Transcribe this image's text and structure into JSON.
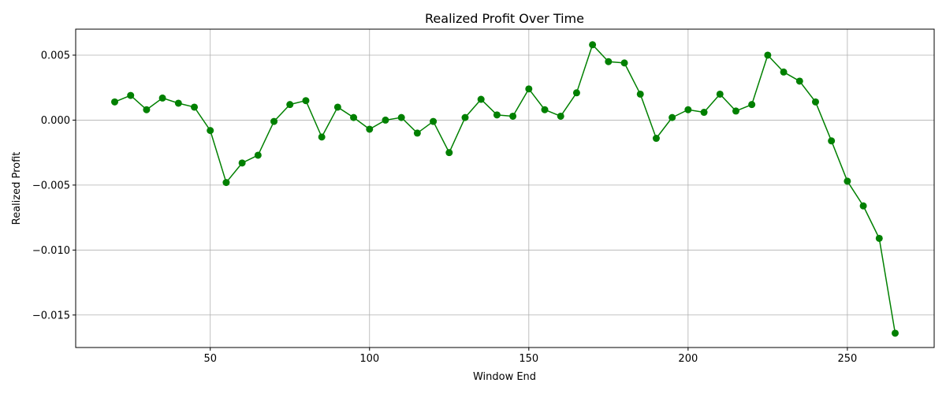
{
  "chart_data": {
    "type": "line",
    "title": "Realized Profit Over Time",
    "xlabel": "Window End",
    "ylabel": "Realized Profit",
    "xlim": [
      7.75,
      277.25
    ],
    "ylim": [
      -0.0175,
      0.007
    ],
    "xticks": [
      50,
      100,
      150,
      200,
      250
    ],
    "xtick_labels": [
      "50",
      "100",
      "150",
      "200",
      "250"
    ],
    "yticks": [
      -0.015,
      -0.01,
      -0.005,
      0.0,
      0.005
    ],
    "ytick_labels": [
      "−0.015",
      "−0.010",
      "−0.005",
      "0.000",
      "0.005"
    ],
    "grid": true,
    "legend": "none",
    "series": [
      {
        "color": "#008000",
        "marker": "circle",
        "x": [
          20,
          25,
          30,
          35,
          40,
          45,
          50,
          55,
          60,
          65,
          70,
          75,
          80,
          85,
          90,
          95,
          100,
          105,
          110,
          115,
          120,
          125,
          130,
          135,
          140,
          145,
          150,
          155,
          160,
          165,
          170,
          175,
          180,
          185,
          190,
          195,
          200,
          205,
          210,
          215,
          220,
          225,
          230,
          235,
          240,
          245,
          250,
          255,
          260,
          265
        ],
        "y": [
          0.0014,
          0.0019,
          0.0008,
          0.0017,
          0.0013,
          0.001,
          -0.0008,
          -0.0048,
          -0.0033,
          -0.0027,
          -0.0001,
          0.0012,
          0.0015,
          -0.0013,
          0.001,
          0.0002,
          -0.0007,
          0.0,
          0.0002,
          -0.001,
          -0.0001,
          -0.0025,
          0.0002,
          0.0016,
          0.0004,
          0.0003,
          0.0024,
          0.0008,
          0.0003,
          0.0021,
          0.0058,
          0.0045,
          0.0044,
          0.002,
          -0.0014,
          0.0002,
          0.0008,
          0.0006,
          0.002,
          0.0007,
          0.0012,
          0.005,
          0.0037,
          0.003,
          0.0014,
          -0.0016,
          -0.0047,
          -0.0066,
          -0.0091,
          -0.0164
        ]
      }
    ]
  }
}
